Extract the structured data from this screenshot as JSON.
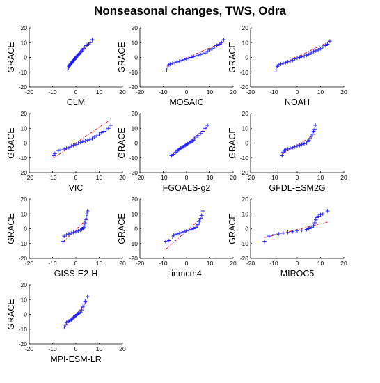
{
  "title": "Nonseasonal changes, TWS, Odra",
  "colors": {
    "points": "#1a1aff",
    "reference": "#e8000b",
    "axes": "#000000"
  },
  "chart_data": [
    {
      "type": "scatter",
      "title": "Nonseasonal changes, TWS, Odra",
      "xlabel": "CLM",
      "ylabel": "GRACE",
      "xlim": [
        -20,
        20
      ],
      "ylim": [
        -20,
        20
      ],
      "xticks": [
        -20,
        -10,
        0,
        10,
        20
      ],
      "yticks": [
        -20,
        -10,
        0,
        10,
        20
      ],
      "grid": false,
      "points": [
        [
          -3.5,
          -8.5
        ],
        [
          -3.2,
          -7
        ],
        [
          -3.0,
          -6
        ],
        [
          -2.8,
          -5.5
        ],
        [
          -2.6,
          -5
        ],
        [
          -2.3,
          -4.5
        ],
        [
          -2,
          -4
        ],
        [
          -1.8,
          -3.5
        ],
        [
          -1.5,
          -3
        ],
        [
          -1.2,
          -2.5
        ],
        [
          -1,
          -2
        ],
        [
          -0.7,
          -1.5
        ],
        [
          -0.4,
          -1
        ],
        [
          -0.2,
          -0.5
        ],
        [
          0,
          0
        ],
        [
          0.3,
          0.5
        ],
        [
          0.6,
          1
        ],
        [
          0.9,
          1.5
        ],
        [
          1.2,
          2
        ],
        [
          1.6,
          2.8
        ],
        [
          2,
          3.5
        ],
        [
          2.4,
          4.2
        ],
        [
          2.8,
          5
        ],
        [
          3.3,
          6
        ],
        [
          3.8,
          7
        ],
        [
          4.3,
          8
        ],
        [
          4.8,
          8.5
        ],
        [
          5.5,
          9
        ],
        [
          6.2,
          10
        ],
        [
          7,
          12
        ]
      ],
      "reference_line": [
        [
          -3.5,
          -8
        ],
        [
          7,
          12
        ]
      ]
    },
    {
      "type": "scatter",
      "xlabel": "MOSAIC",
      "ylabel": "GRACE",
      "xlim": [
        -20,
        20
      ],
      "ylim": [
        -20,
        20
      ],
      "xticks": [
        -20,
        -10,
        0,
        10,
        20
      ],
      "yticks": [
        -20,
        -10,
        0,
        10,
        20
      ],
      "points": [
        [
          -8.5,
          -8.5
        ],
        [
          -8,
          -7
        ],
        [
          -7.5,
          -5
        ],
        [
          -7,
          -4.5
        ],
        [
          -6,
          -4
        ],
        [
          -5,
          -3.5
        ],
        [
          -4,
          -3
        ],
        [
          -3,
          -2.5
        ],
        [
          -2,
          -2
        ],
        [
          -1,
          -1.5
        ],
        [
          0,
          -1
        ],
        [
          1,
          -0.5
        ],
        [
          2,
          0
        ],
        [
          3,
          0.5
        ],
        [
          4,
          1
        ],
        [
          5,
          1.5
        ],
        [
          6,
          2
        ],
        [
          7,
          2.5
        ],
        [
          8,
          3
        ],
        [
          9,
          4
        ],
        [
          10,
          5
        ],
        [
          11,
          6
        ],
        [
          12,
          7
        ],
        [
          13,
          8
        ],
        [
          14,
          9
        ],
        [
          15,
          10
        ],
        [
          16,
          12
        ]
      ],
      "reference_line": [
        [
          -8.5,
          -6
        ],
        [
          16,
          10.5
        ]
      ]
    },
    {
      "type": "scatter",
      "xlabel": "NOAH",
      "ylabel": "GRACE",
      "xlim": [
        -20,
        20
      ],
      "ylim": [
        -20,
        20
      ],
      "xticks": [
        -20,
        -10,
        0,
        10,
        20
      ],
      "yticks": [
        -20,
        -10,
        0,
        10,
        20
      ],
      "points": [
        [
          -9,
          -8.5
        ],
        [
          -8.5,
          -6
        ],
        [
          -8,
          -5
        ],
        [
          -7,
          -4.5
        ],
        [
          -6,
          -4
        ],
        [
          -5,
          -3.5
        ],
        [
          -4,
          -3
        ],
        [
          -3,
          -2.5
        ],
        [
          -2,
          -2
        ],
        [
          -1,
          -1
        ],
        [
          0,
          -0.5
        ],
        [
          1,
          0
        ],
        [
          2,
          0.5
        ],
        [
          3,
          1
        ],
        [
          4,
          1.5
        ],
        [
          5,
          2
        ],
        [
          6,
          3
        ],
        [
          7,
          4
        ],
        [
          8,
          4.5
        ],
        [
          9,
          5
        ],
        [
          10,
          6
        ],
        [
          11,
          7
        ],
        [
          12,
          8
        ],
        [
          13,
          9
        ],
        [
          14,
          11
        ]
      ],
      "reference_line": [
        [
          -9,
          -6.5
        ],
        [
          14,
          11
        ]
      ]
    },
    {
      "type": "scatter",
      "xlabel": "VIC",
      "ylabel": "GRACE",
      "xlim": [
        -20,
        20
      ],
      "ylim": [
        -20,
        20
      ],
      "xticks": [
        -20,
        -10,
        0,
        10,
        20
      ],
      "yticks": [
        -20,
        -10,
        0,
        10,
        20
      ],
      "points": [
        [
          -9.5,
          -8.5
        ],
        [
          -9,
          -7
        ],
        [
          -7.5,
          -5
        ],
        [
          -6.5,
          -4.5
        ],
        [
          -5,
          -4
        ],
        [
          -4,
          -3.5
        ],
        [
          -3,
          -3
        ],
        [
          -2,
          -2
        ],
        [
          -1,
          -1.5
        ],
        [
          0,
          -1
        ],
        [
          1,
          0
        ],
        [
          2,
          0.5
        ],
        [
          3,
          1
        ],
        [
          4,
          1.5
        ],
        [
          5,
          2
        ],
        [
          6,
          2.5
        ],
        [
          7,
          3
        ],
        [
          8,
          4
        ],
        [
          9,
          5
        ],
        [
          10,
          6
        ],
        [
          11,
          7
        ],
        [
          12,
          8
        ],
        [
          13,
          9
        ],
        [
          14,
          10
        ],
        [
          15,
          12
        ]
      ],
      "reference_line": [
        [
          -9.5,
          -10
        ],
        [
          15,
          16
        ]
      ]
    },
    {
      "type": "scatter",
      "xlabel": "FGOALS-g2",
      "ylabel": "GRACE",
      "xlim": [
        -20,
        20
      ],
      "ylim": [
        -20,
        20
      ],
      "xticks": [
        -20,
        -10,
        0,
        10,
        20
      ],
      "yticks": [
        -20,
        -10,
        0,
        10,
        20
      ],
      "points": [
        [
          -6.5,
          -8.5
        ],
        [
          -5.5,
          -7.5
        ],
        [
          -4.5,
          -6
        ],
        [
          -4,
          -5
        ],
        [
          -3.5,
          -4.5
        ],
        [
          -3,
          -4
        ],
        [
          -2.5,
          -3.5
        ],
        [
          -2,
          -3
        ],
        [
          -1.5,
          -2.5
        ],
        [
          -1,
          -2
        ],
        [
          -0.5,
          -1.5
        ],
        [
          0,
          -1
        ],
        [
          0.5,
          -0.5
        ],
        [
          1,
          0
        ],
        [
          1.5,
          0.5
        ],
        [
          2,
          1
        ],
        [
          2.5,
          1.5
        ],
        [
          3,
          2
        ],
        [
          3.5,
          3
        ],
        [
          4,
          4
        ],
        [
          5,
          5
        ],
        [
          6,
          6.5
        ],
        [
          7,
          8
        ],
        [
          8,
          10
        ],
        [
          9,
          12
        ]
      ],
      "reference_line": [
        [
          -6.5,
          -9
        ],
        [
          9,
          11
        ]
      ]
    },
    {
      "type": "scatter",
      "xlabel": "GFDL-ESM2G",
      "ylabel": "GRACE",
      "xlim": [
        -20,
        20
      ],
      "ylim": [
        -20,
        20
      ],
      "xticks": [
        -20,
        -10,
        0,
        10,
        20
      ],
      "yticks": [
        -20,
        -10,
        0,
        10,
        20
      ],
      "points": [
        [
          -6.5,
          -8.5
        ],
        [
          -6,
          -6
        ],
        [
          -5.5,
          -5
        ],
        [
          -5,
          -4.5
        ],
        [
          -4,
          -4
        ],
        [
          -3,
          -3.5
        ],
        [
          -2,
          -3
        ],
        [
          -1,
          -2.5
        ],
        [
          0,
          -2
        ],
        [
          1,
          -1.5
        ],
        [
          2,
          -1
        ],
        [
          3,
          -0.5
        ],
        [
          4,
          0
        ],
        [
          4.5,
          1
        ],
        [
          5,
          2
        ],
        [
          5.5,
          3
        ],
        [
          6,
          4.5
        ],
        [
          6.5,
          6
        ],
        [
          7,
          8
        ],
        [
          7.5,
          9.5
        ],
        [
          7.8,
          12
        ]
      ],
      "reference_line": [
        [
          -6.5,
          -7.5
        ],
        [
          7.8,
          6
        ]
      ]
    },
    {
      "type": "scatter",
      "xlabel": "GISS-E2-H",
      "ylabel": "GRACE",
      "xlim": [
        -20,
        20
      ],
      "ylim": [
        -20,
        20
      ],
      "xticks": [
        -20,
        -10,
        0,
        10,
        20
      ],
      "yticks": [
        -20,
        -10,
        0,
        10,
        20
      ],
      "points": [
        [
          -5.5,
          -8.5
        ],
        [
          -5,
          -5
        ],
        [
          -4,
          -4
        ],
        [
          -3,
          -3.5
        ],
        [
          -2,
          -3
        ],
        [
          -1,
          -2.5
        ],
        [
          0,
          -2
        ],
        [
          1,
          -1.5
        ],
        [
          2,
          -1
        ],
        [
          2.5,
          -0.5
        ],
        [
          3,
          0
        ],
        [
          3.3,
          1
        ],
        [
          3.6,
          2
        ],
        [
          3.9,
          4
        ],
        [
          4.2,
          6
        ],
        [
          4.5,
          8
        ],
        [
          4.8,
          10
        ],
        [
          5,
          12
        ]
      ],
      "reference_line": [
        [
          -5.5,
          -9
        ],
        [
          5,
          7
        ]
      ]
    },
    {
      "type": "scatter",
      "xlabel": "inmcm4",
      "ylabel": "GRACE",
      "xlim": [
        -20,
        20
      ],
      "ylim": [
        -20,
        20
      ],
      "xticks": [
        -20,
        -10,
        0,
        10,
        20
      ],
      "yticks": [
        -20,
        -10,
        0,
        10,
        20
      ],
      "points": [
        [
          -9,
          -8.5
        ],
        [
          -7.5,
          -8
        ],
        [
          -6,
          -5.5
        ],
        [
          -5.5,
          -4.5
        ],
        [
          -5,
          -4
        ],
        [
          -4,
          -3.5
        ],
        [
          -3,
          -3
        ],
        [
          -2,
          -2.5
        ],
        [
          -1,
          -2
        ],
        [
          0,
          -1.5
        ],
        [
          1,
          -1
        ],
        [
          2,
          -0.5
        ],
        [
          3,
          0
        ],
        [
          4,
          1
        ],
        [
          4.5,
          2
        ],
        [
          5,
          3
        ],
        [
          5.5,
          5
        ],
        [
          6,
          7
        ],
        [
          6.5,
          9
        ],
        [
          7,
          12
        ]
      ],
      "reference_line": [
        [
          -9,
          -14
        ],
        [
          7,
          8
        ]
      ]
    },
    {
      "type": "scatter",
      "xlabel": "MIROC5",
      "ylabel": "GRACE",
      "xlim": [
        -20,
        20
      ],
      "ylim": [
        -20,
        20
      ],
      "xticks": [
        -20,
        -10,
        0,
        10,
        20
      ],
      "yticks": [
        -20,
        -10,
        0,
        10,
        20
      ],
      "points": [
        [
          -14,
          -8.5
        ],
        [
          -12,
          -5
        ],
        [
          -10,
          -4
        ],
        [
          -8,
          -3.5
        ],
        [
          -6,
          -3
        ],
        [
          -4,
          -2.5
        ],
        [
          -2,
          -2
        ],
        [
          0,
          -1.5
        ],
        [
          2,
          -1
        ],
        [
          4,
          -0.5
        ],
        [
          5,
          0
        ],
        [
          6,
          1
        ],
        [
          7,
          2
        ],
        [
          7.5,
          4
        ],
        [
          8,
          6
        ],
        [
          8.5,
          7.5
        ],
        [
          9,
          8.5
        ],
        [
          10,
          9.5
        ],
        [
          11,
          10
        ],
        [
          13,
          12
        ]
      ],
      "reference_line": [
        [
          -14,
          -6
        ],
        [
          13,
          4.5
        ]
      ]
    },
    {
      "type": "scatter",
      "xlabel": "MPI-ESM-LR",
      "ylabel": "GRACE",
      "xlim": [
        -20,
        20
      ],
      "ylim": [
        -20,
        20
      ],
      "xticks": [
        -20,
        -10,
        0,
        10,
        20
      ],
      "yticks": [
        -20,
        -10,
        0,
        10,
        20
      ],
      "points": [
        [
          -5,
          -8.5
        ],
        [
          -4.5,
          -7
        ],
        [
          -4,
          -5.5
        ],
        [
          -3.5,
          -5
        ],
        [
          -3,
          -4.5
        ],
        [
          -2.5,
          -4
        ],
        [
          -2,
          -3.5
        ],
        [
          -1.5,
          -3
        ],
        [
          -1,
          -2
        ],
        [
          -0.5,
          -1.5
        ],
        [
          0,
          -1
        ],
        [
          0.5,
          0
        ],
        [
          1,
          0.5
        ],
        [
          1.5,
          1
        ],
        [
          2,
          1.5
        ],
        [
          2.5,
          3
        ],
        [
          3,
          5
        ],
        [
          3.5,
          7
        ],
        [
          4,
          9
        ],
        [
          5,
          12
        ]
      ],
      "reference_line": [
        [
          -5,
          -9
        ],
        [
          5,
          9
        ]
      ]
    }
  ]
}
